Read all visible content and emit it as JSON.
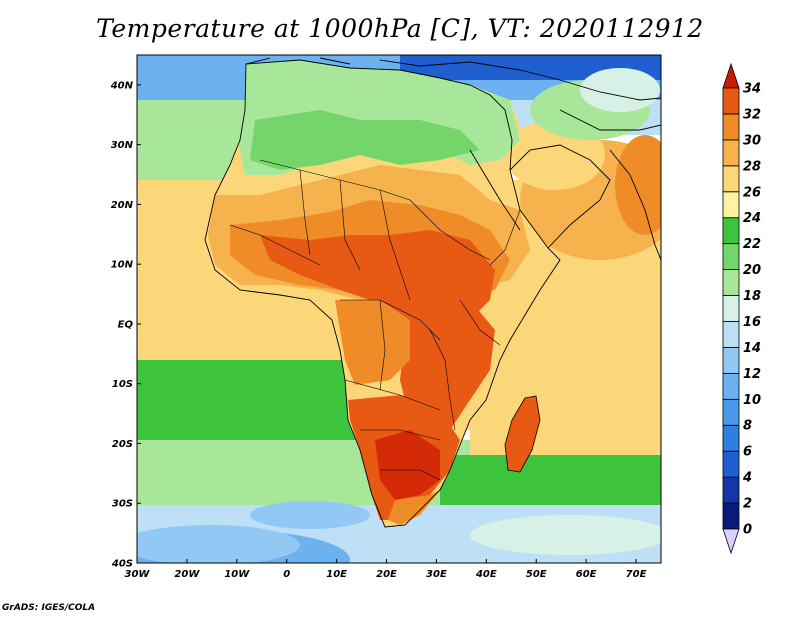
{
  "title": "Temperature at 1000hPa [C], VT: 2020112912",
  "credit": "GrADS: IGES/COLA",
  "map": {
    "region": "Africa",
    "variable": "Temperature at 1000hPa",
    "units": "C",
    "lon_range": [
      -30,
      75
    ],
    "lat_range": [
      -40,
      45
    ],
    "lat_ticks": [
      {
        "value": 40,
        "label": "40N"
      },
      {
        "value": 30,
        "label": "30N"
      },
      {
        "value": 20,
        "label": "20N"
      },
      {
        "value": 10,
        "label": "10N"
      },
      {
        "value": 0,
        "label": "EQ"
      },
      {
        "value": -10,
        "label": "10S"
      },
      {
        "value": -20,
        "label": "20S"
      },
      {
        "value": -30,
        "label": "30S"
      },
      {
        "value": -40,
        "label": "40S"
      }
    ],
    "lon_ticks": [
      {
        "value": -30,
        "label": "30W"
      },
      {
        "value": -20,
        "label": "20W"
      },
      {
        "value": -10,
        "label": "10W"
      },
      {
        "value": 0,
        "label": "0"
      },
      {
        "value": 10,
        "label": "10E"
      },
      {
        "value": 20,
        "label": "20E"
      },
      {
        "value": 30,
        "label": "30E"
      },
      {
        "value": 40,
        "label": "40E"
      },
      {
        "value": 50,
        "label": "50E"
      },
      {
        "value": 60,
        "label": "60E"
      },
      {
        "value": 70,
        "label": "70E"
      }
    ]
  },
  "colorbar": {
    "levels": [
      "0",
      "2",
      "4",
      "6",
      "8",
      "10",
      "12",
      "14",
      "16",
      "18",
      "20",
      "22",
      "24",
      "26",
      "28",
      "30",
      "32",
      "34"
    ],
    "colors": [
      "#0a1a7a",
      "#1437a8",
      "#1f5fd0",
      "#2f7fe0",
      "#4a99ea",
      "#6cb2f0",
      "#92c8f4",
      "#bde0f7",
      "#d8f1e6",
      "#a8e79a",
      "#74d66a",
      "#3ec43c",
      "#fff2a0",
      "#fbd77a",
      "#f6b24c",
      "#f08c28",
      "#e85a14",
      "#d42a08"
    ],
    "below_color": "#dcd0f8",
    "above_color": "#c81a04"
  }
}
